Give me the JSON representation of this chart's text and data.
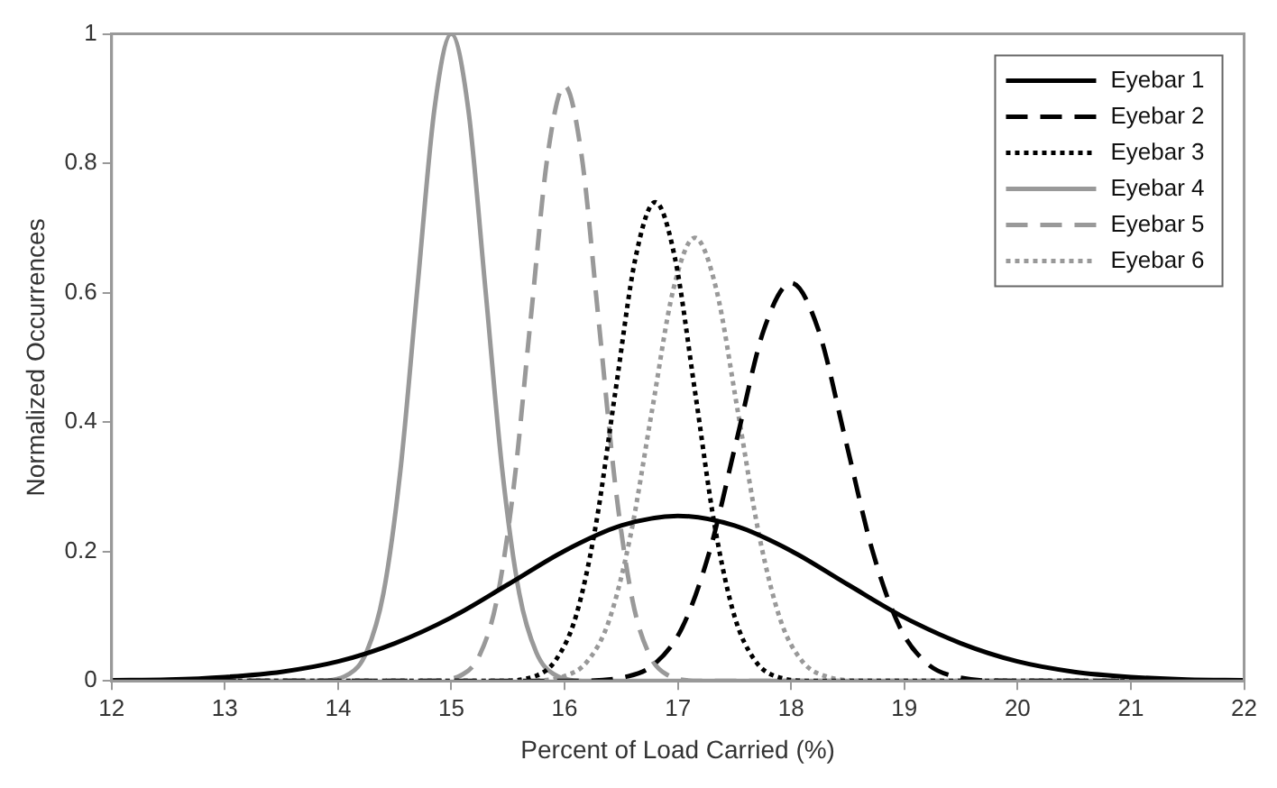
{
  "chart_data": {
    "type": "line",
    "xlabel": "Percent of Load Carried (%)",
    "ylabel": "Normalized Occurrences",
    "xlim": [
      12,
      22
    ],
    "xticks": [
      12,
      13,
      14,
      15,
      16,
      17,
      18,
      19,
      20,
      21,
      22
    ],
    "ylim": [
      0,
      1
    ],
    "yticks": [
      0,
      0.2,
      0.4,
      0.6,
      0.8,
      1
    ],
    "grid": false,
    "legend": "top right",
    "marker": "none",
    "series": [
      {
        "name": "Eyebar 1",
        "color": "#000000",
        "line_style": "solid",
        "x": [
          12,
          12.5,
          13,
          13.5,
          14,
          14.5,
          15,
          15.5,
          16,
          16.5,
          17,
          17.5,
          18,
          18.5,
          19,
          19.5,
          20,
          20.5,
          21,
          21.5,
          22
        ],
        "values": [
          0.001,
          0.002,
          0.006,
          0.014,
          0.03,
          0.058,
          0.098,
          0.149,
          0.201,
          0.24,
          0.255,
          0.24,
          0.201,
          0.149,
          0.098,
          0.058,
          0.03,
          0.014,
          0.006,
          0.002,
          0.001
        ]
      },
      {
        "name": "Eyebar 2",
        "color": "#000000",
        "line_style": "dashed",
        "x": [
          12,
          16.08,
          16.56,
          16.8,
          17.04,
          17.28,
          17.52,
          17.76,
          18,
          18.24,
          18.48,
          18.72,
          18.96,
          19.2,
          19.44,
          19.92,
          22
        ],
        "values": [
          0,
          0,
          0.007,
          0.027,
          0.083,
          0.2,
          0.373,
          0.543,
          0.615,
          0.543,
          0.373,
          0.2,
          0.083,
          0.027,
          0.007,
          0,
          0
        ]
      },
      {
        "name": "Eyebar 3",
        "color": "#000000",
        "line_style": "dotted",
        "x": [
          12,
          15.4,
          15.75,
          15.925,
          16.1,
          16.275,
          16.45,
          16.625,
          16.8,
          16.975,
          17.15,
          17.325,
          17.5,
          17.675,
          17.85,
          18.2,
          22
        ],
        "values": [
          0,
          0,
          0.008,
          0.033,
          0.1,
          0.24,
          0.449,
          0.653,
          0.74,
          0.653,
          0.449,
          0.24,
          0.1,
          0.033,
          0.008,
          0,
          0
        ]
      },
      {
        "name": "Eyebar 4",
        "color": "#999999",
        "line_style": "solid",
        "x": [
          12,
          13.8,
          14.1,
          14.25,
          14.4,
          14.55,
          14.7,
          14.85,
          15,
          15.15,
          15.3,
          15.45,
          15.6,
          15.75,
          15.9,
          16.2,
          22
        ],
        "values": [
          0,
          0,
          0.011,
          0.044,
          0.135,
          0.325,
          0.607,
          0.883,
          1,
          0.883,
          0.607,
          0.325,
          0.135,
          0.044,
          0.011,
          0,
          0
        ]
      },
      {
        "name": "Eyebar 5",
        "color": "#999999",
        "line_style": "dashed",
        "x": [
          12,
          14.8,
          15.1,
          15.25,
          15.4,
          15.55,
          15.7,
          15.85,
          16,
          16.15,
          16.3,
          16.45,
          16.6,
          16.75,
          16.9,
          17.2,
          22
        ],
        "values": [
          0,
          0,
          0.01,
          0.04,
          0.124,
          0.299,
          0.558,
          0.812,
          0.92,
          0.812,
          0.558,
          0.299,
          0.124,
          0.04,
          0.01,
          0,
          0
        ]
      },
      {
        "name": "Eyebar 6",
        "color": "#999999",
        "line_style": "dotted",
        "x": [
          12,
          15.63,
          16.01,
          16.2,
          16.39,
          16.58,
          16.77,
          16.96,
          17.15,
          17.34,
          17.53,
          17.72,
          17.91,
          18.1,
          18.29,
          18.67,
          22
        ],
        "values": [
          0,
          0,
          0.008,
          0.03,
          0.092,
          0.223,
          0.416,
          0.605,
          0.685,
          0.605,
          0.416,
          0.223,
          0.092,
          0.03,
          0.008,
          0,
          0
        ]
      }
    ]
  }
}
